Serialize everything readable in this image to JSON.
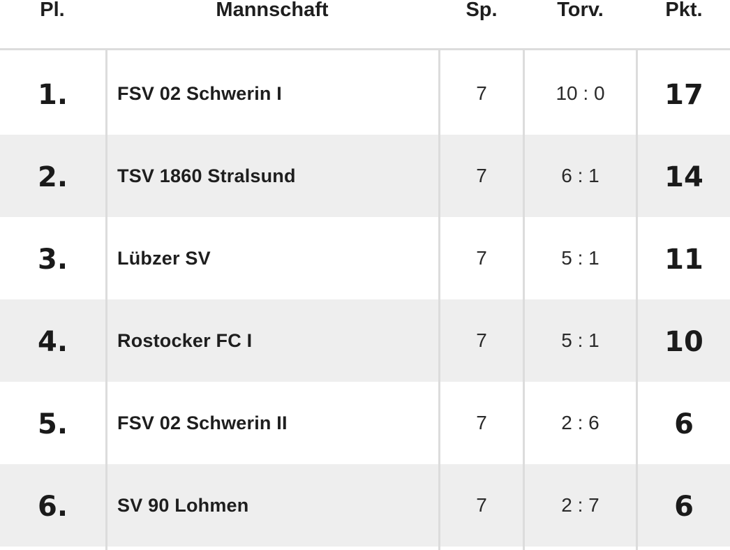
{
  "table": {
    "headers": {
      "place": "Pl.",
      "team": "Mannschaft",
      "games": "Sp.",
      "goals": "Torv.",
      "points": "Pkt."
    },
    "rows": [
      {
        "place": "1.",
        "team": "FSV 02 Schwerin I",
        "games": "7",
        "goals": "10 : 0",
        "points": "17"
      },
      {
        "place": "2.",
        "team": "TSV 1860 Stralsund",
        "games": "7",
        "goals": "6 : 1",
        "points": "14"
      },
      {
        "place": "3.",
        "team": "Lübzer SV",
        "games": "7",
        "goals": "5 : 1",
        "points": "11"
      },
      {
        "place": "4.",
        "team": "Rostocker FC I",
        "games": "7",
        "goals": "5 : 1",
        "points": "10"
      },
      {
        "place": "5.",
        "team": "FSV 02 Schwerin II",
        "games": "7",
        "goals": "2 : 6",
        "points": "6"
      },
      {
        "place": "6.",
        "team": "SV 90 Lohmen",
        "games": "7",
        "goals": "2 : 7",
        "points": "6"
      }
    ]
  },
  "colors": {
    "background": "#ffffff",
    "alt_row": "#eeeeee",
    "grid_line": "#dcdcdc",
    "text": "#1e1e1e"
  }
}
